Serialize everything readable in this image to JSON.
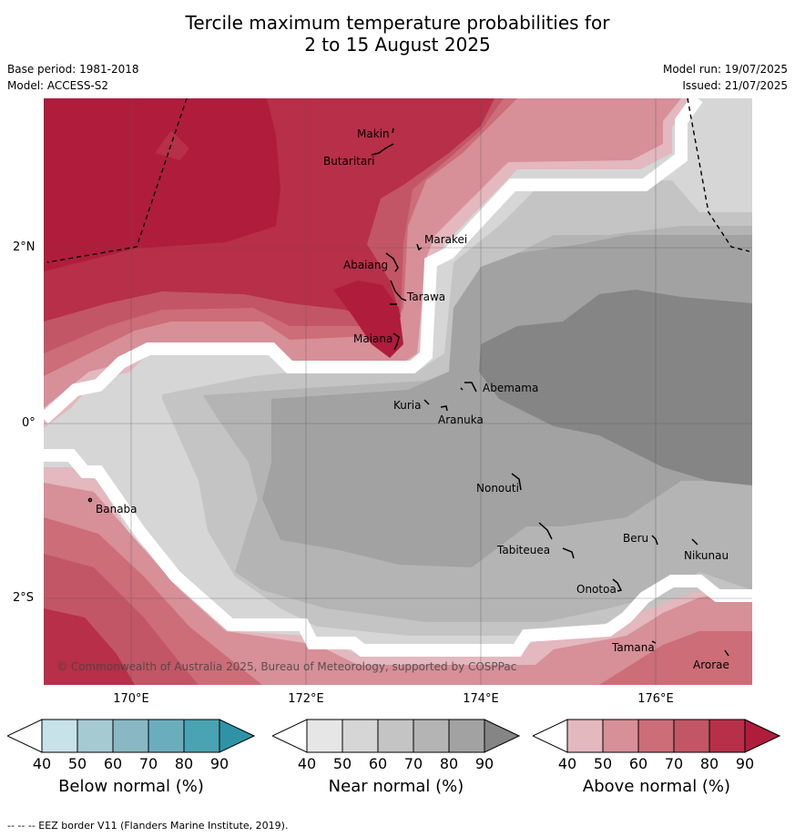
{
  "title_line1": "Tercile maximum temperature probabilities for",
  "title_line2": "2 to 15 August 2025",
  "meta": {
    "base_period": "Base period: 1981-2018",
    "model": "Model: ACCESS-S2",
    "model_run": "Model run: 19/07/2025",
    "issued": "Issued: 21/07/2025"
  },
  "axes": {
    "lat_labels": [
      "2°N",
      "0°",
      "2°S"
    ],
    "lon_labels": [
      "170°E",
      "172°E",
      "174°E",
      "176°E"
    ]
  },
  "places": [
    "Makin",
    "Butaritari",
    "Marakei",
    "Abaiang",
    "Tarawa",
    "Maiana",
    "Abemama",
    "Kuria",
    "Aranuka",
    "Nonouti",
    "Banaba",
    "Beru",
    "Nikunau",
    "Tabiteuea",
    "Onotoa",
    "Tamana",
    "Arorae"
  ],
  "copyright": "© Commonwealth of Australia 2025, Bureau of Meteorology, supported by COSPPac",
  "colorbars": [
    {
      "title": "Below normal (%)",
      "ticks": [
        "40",
        "50",
        "60",
        "70",
        "80",
        "90"
      ],
      "colors": [
        "#ffffff",
        "#c8e2ea",
        "#a6cad1",
        "#89b8c4",
        "#6aaebd",
        "#4aa3b2",
        "#2f93a8"
      ]
    },
    {
      "title": "Near normal (%)",
      "ticks": [
        "40",
        "50",
        "60",
        "70",
        "80",
        "90"
      ],
      "colors": [
        "#ffffff",
        "#e6e6e6",
        "#d6d6d6",
        "#c4c4c4",
        "#b4b4b4",
        "#a2a2a2",
        "#858585"
      ]
    },
    {
      "title": "Above normal (%)",
      "ticks": [
        "40",
        "50",
        "60",
        "70",
        "80",
        "90"
      ],
      "colors": [
        "#ffffff",
        "#e3b8be",
        "#d78f98",
        "#cc6d78",
        "#c25666",
        "#b72f48",
        "#b01c3c"
      ]
    }
  ],
  "footer": "--  --  -- EEZ border V11 (Flanders Marine Institute, 2019)."
}
